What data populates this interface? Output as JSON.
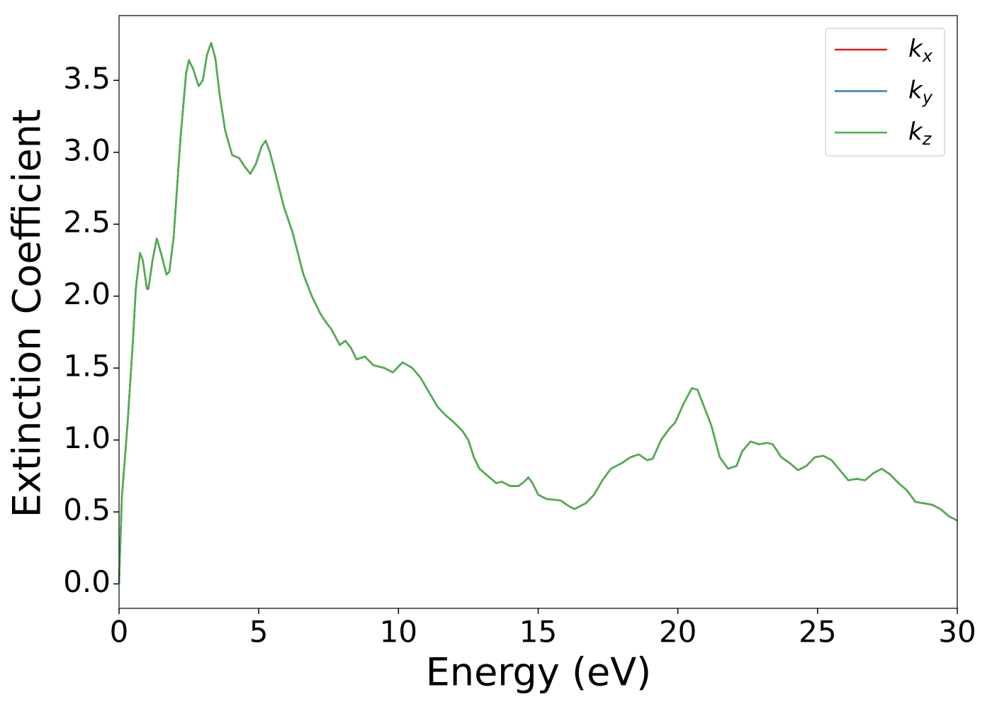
{
  "chart_data": {
    "type": "line",
    "xlabel": "Energy (eV)",
    "ylabel": "Extinction Coefficient",
    "x": [
      0,
      0.1,
      0.3,
      0.5,
      0.6,
      0.75,
      0.85,
      1.0,
      1.05,
      1.2,
      1.35,
      1.5,
      1.7,
      1.8,
      1.95,
      2.2,
      2.4,
      2.5,
      2.65,
      2.85,
      3.0,
      3.15,
      3.3,
      3.45,
      3.6,
      3.8,
      4.05,
      4.3,
      4.5,
      4.7,
      4.9,
      5.1,
      5.25,
      5.4,
      5.6,
      5.9,
      6.2,
      6.6,
      6.9,
      7.2,
      7.4,
      7.6,
      7.9,
      8.1,
      8.3,
      8.5,
      8.8,
      9.1,
      9.5,
      9.8,
      10.15,
      10.5,
      10.8,
      11.1,
      11.4,
      11.7,
      12.0,
      12.3,
      12.5,
      12.7,
      12.9,
      13.2,
      13.5,
      13.7,
      14.0,
      14.3,
      14.5,
      14.65,
      14.8,
      15.0,
      15.3,
      15.8,
      16.1,
      16.3,
      16.7,
      17.0,
      17.3,
      17.6,
      18.0,
      18.3,
      18.6,
      18.9,
      19.1,
      19.4,
      19.7,
      19.9,
      20.2,
      20.5,
      20.7,
      20.9,
      21.2,
      21.5,
      21.8,
      22.1,
      22.3,
      22.6,
      22.9,
      23.2,
      23.4,
      23.7,
      24.0,
      24.3,
      24.6,
      24.9,
      25.2,
      25.5,
      25.8,
      26.1,
      26.4,
      26.7,
      27.0,
      27.3,
      27.6,
      27.9,
      28.2,
      28.5,
      28.8,
      29.1,
      29.4,
      29.7,
      30.0
    ],
    "series": [
      {
        "name": "k",
        "subscript": "x",
        "color": "#e41a1c",
        "values": [
          0,
          0.6,
          1.1,
          1.7,
          2.05,
          2.3,
          2.25,
          2.05,
          2.05,
          2.25,
          2.4,
          2.3,
          2.15,
          2.17,
          2.4,
          3.1,
          3.55,
          3.64,
          3.58,
          3.46,
          3.5,
          3.68,
          3.76,
          3.65,
          3.4,
          3.15,
          2.98,
          2.96,
          2.9,
          2.85,
          2.92,
          3.04,
          3.08,
          3.0,
          2.85,
          2.62,
          2.45,
          2.15,
          2.0,
          1.88,
          1.82,
          1.77,
          1.66,
          1.69,
          1.64,
          1.56,
          1.58,
          1.52,
          1.5,
          1.47,
          1.54,
          1.5,
          1.43,
          1.33,
          1.23,
          1.17,
          1.12,
          1.06,
          1.0,
          0.88,
          0.8,
          0.75,
          0.7,
          0.71,
          0.68,
          0.68,
          0.71,
          0.74,
          0.7,
          0.62,
          0.59,
          0.58,
          0.54,
          0.52,
          0.56,
          0.62,
          0.72,
          0.8,
          0.84,
          0.88,
          0.9,
          0.86,
          0.87,
          1.0,
          1.08,
          1.12,
          1.25,
          1.36,
          1.35,
          1.25,
          1.1,
          0.88,
          0.8,
          0.82,
          0.92,
          0.99,
          0.97,
          0.98,
          0.97,
          0.88,
          0.84,
          0.79,
          0.82,
          0.88,
          0.89,
          0.86,
          0.79,
          0.72,
          0.73,
          0.72,
          0.77,
          0.8,
          0.76,
          0.7,
          0.65,
          0.57,
          0.56,
          0.55,
          0.52,
          0.47,
          0.44
        ]
      },
      {
        "name": "k",
        "subscript": "y",
        "color": "#377eb8",
        "values": [
          0,
          0.6,
          1.1,
          1.7,
          2.05,
          2.3,
          2.25,
          2.05,
          2.05,
          2.25,
          2.4,
          2.3,
          2.15,
          2.17,
          2.4,
          3.1,
          3.55,
          3.64,
          3.58,
          3.46,
          3.5,
          3.68,
          3.76,
          3.65,
          3.4,
          3.15,
          2.98,
          2.96,
          2.9,
          2.85,
          2.92,
          3.04,
          3.08,
          3.0,
          2.85,
          2.62,
          2.45,
          2.15,
          2.0,
          1.88,
          1.82,
          1.77,
          1.66,
          1.69,
          1.64,
          1.56,
          1.58,
          1.52,
          1.5,
          1.47,
          1.54,
          1.5,
          1.43,
          1.33,
          1.23,
          1.17,
          1.12,
          1.06,
          1.0,
          0.88,
          0.8,
          0.75,
          0.7,
          0.71,
          0.68,
          0.68,
          0.71,
          0.74,
          0.7,
          0.62,
          0.59,
          0.58,
          0.54,
          0.52,
          0.56,
          0.62,
          0.72,
          0.8,
          0.84,
          0.88,
          0.9,
          0.86,
          0.87,
          1.0,
          1.08,
          1.12,
          1.25,
          1.36,
          1.35,
          1.25,
          1.1,
          0.88,
          0.8,
          0.82,
          0.92,
          0.99,
          0.97,
          0.98,
          0.97,
          0.88,
          0.84,
          0.79,
          0.82,
          0.88,
          0.89,
          0.86,
          0.79,
          0.72,
          0.73,
          0.72,
          0.77,
          0.8,
          0.76,
          0.7,
          0.65,
          0.57,
          0.56,
          0.55,
          0.52,
          0.47,
          0.44
        ]
      },
      {
        "name": "k",
        "subscript": "z",
        "color": "#4daf4a",
        "values": [
          0,
          0.6,
          1.1,
          1.7,
          2.05,
          2.3,
          2.25,
          2.05,
          2.05,
          2.25,
          2.4,
          2.3,
          2.15,
          2.17,
          2.4,
          3.1,
          3.55,
          3.64,
          3.58,
          3.46,
          3.5,
          3.68,
          3.76,
          3.65,
          3.4,
          3.15,
          2.98,
          2.96,
          2.9,
          2.85,
          2.92,
          3.04,
          3.08,
          3.0,
          2.85,
          2.62,
          2.45,
          2.15,
          2.0,
          1.88,
          1.82,
          1.77,
          1.66,
          1.69,
          1.64,
          1.56,
          1.58,
          1.52,
          1.5,
          1.47,
          1.54,
          1.5,
          1.43,
          1.33,
          1.23,
          1.17,
          1.12,
          1.06,
          1.0,
          0.88,
          0.8,
          0.75,
          0.7,
          0.71,
          0.68,
          0.68,
          0.71,
          0.74,
          0.7,
          0.62,
          0.59,
          0.58,
          0.54,
          0.52,
          0.56,
          0.62,
          0.72,
          0.8,
          0.84,
          0.88,
          0.9,
          0.86,
          0.87,
          1.0,
          1.08,
          1.12,
          1.25,
          1.36,
          1.35,
          1.25,
          1.1,
          0.88,
          0.8,
          0.82,
          0.92,
          0.99,
          0.97,
          0.98,
          0.97,
          0.88,
          0.84,
          0.79,
          0.82,
          0.88,
          0.89,
          0.86,
          0.79,
          0.72,
          0.73,
          0.72,
          0.77,
          0.8,
          0.76,
          0.7,
          0.65,
          0.57,
          0.56,
          0.55,
          0.52,
          0.47,
          0.44
        ]
      }
    ],
    "xlim": [
      0,
      30
    ],
    "xticks": [
      0,
      5,
      10,
      15,
      20,
      25,
      30
    ],
    "ylim": [
      -0.17,
      3.95
    ],
    "yticks": [
      {
        "value": 0,
        "label": "0.0"
      },
      0.5,
      {
        "value": 1,
        "label": "1.0"
      },
      1.5,
      {
        "value": 2,
        "label": "2.0"
      },
      2.5,
      {
        "value": 3,
        "label": "3.0"
      },
      3.5
    ],
    "legend": "upper right",
    "grid": false
  }
}
